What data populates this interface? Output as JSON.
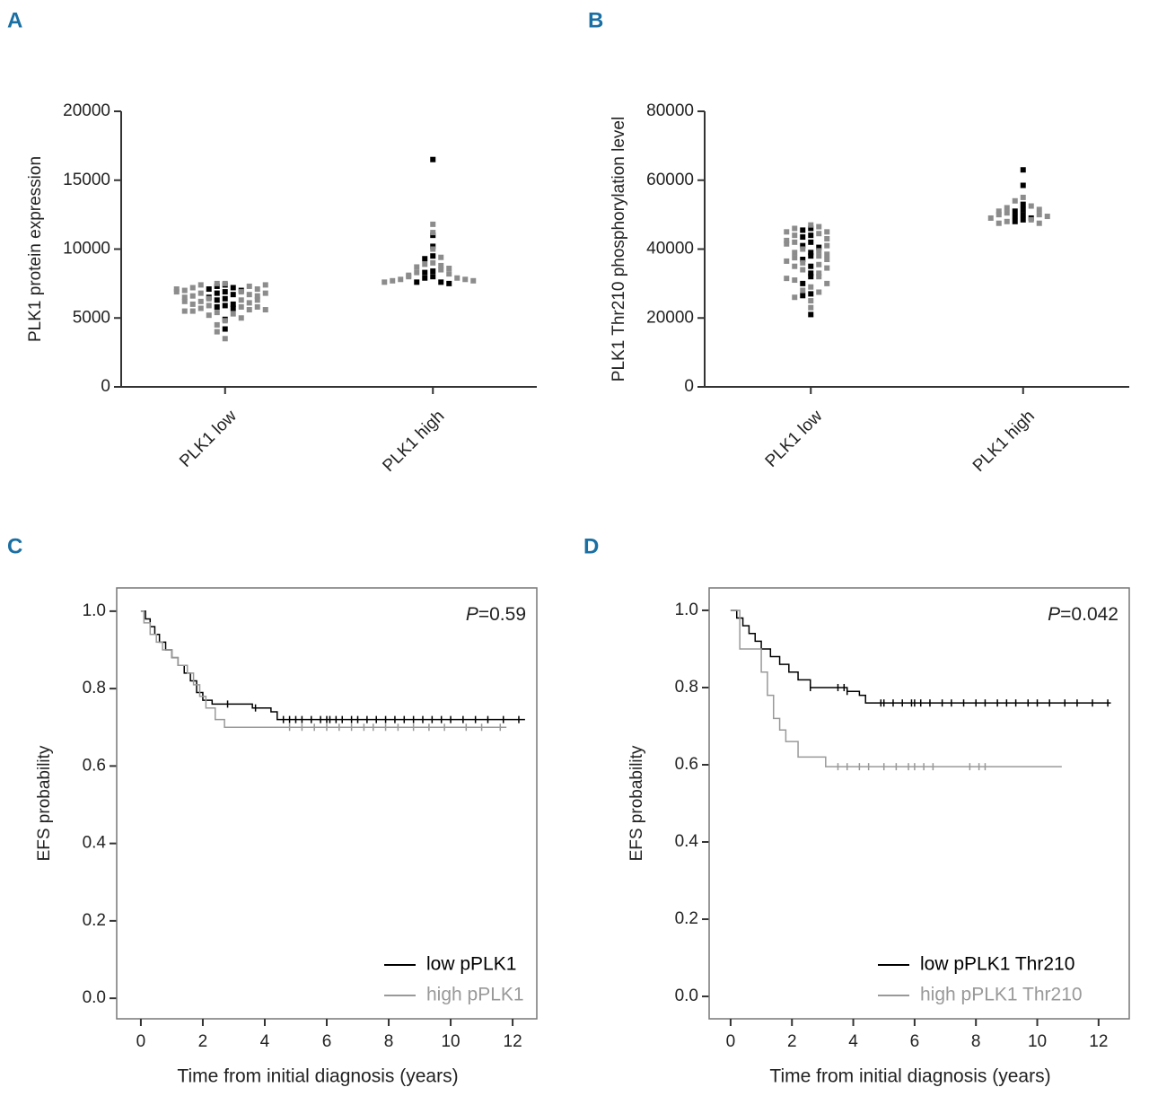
{
  "chart_data": [
    {
      "type": "dot",
      "panel_label": "A",
      "y_label": "PLK1 protein expression",
      "categories": [
        "PLK1 low",
        "PLK1 high"
      ],
      "ylim": [
        0,
        20000
      ],
      "yticks": [
        0,
        5000,
        10000,
        15000,
        20000
      ],
      "groups": [
        {
          "series": [
            {
              "color": "#000000",
              "values": [
                7400,
                7300,
                7200,
                7100,
                7000,
                6900,
                6800,
                6700,
                6500,
                6400,
                6300,
                6000,
                5900,
                5800,
                5700,
                4900,
                4200
              ]
            },
            {
              "color": "#8c8c8c",
              "values": [
                7500,
                7500,
                7400,
                7300,
                7200,
                7100,
                7000,
                6900,
                6800,
                6700,
                6600,
                6600,
                6500,
                6400,
                6300,
                6200,
                6100,
                6000,
                5900,
                5800,
                5700,
                5600,
                5500,
                5400,
                5300,
                5200,
                5000,
                4800,
                4500,
                4000,
                3500,
                7400,
                7100,
                6800,
                6300,
                5800,
                5500,
                6900,
                6200,
                5600
              ]
            }
          ]
        },
        {
          "series": [
            {
              "color": "#000000",
              "values": [
                16500,
                11000,
                10200,
                9500,
                9300,
                8400,
                8300,
                8000,
                7900,
                7600,
                7600,
                7500
              ]
            },
            {
              "color": "#8c8c8c",
              "values": [
                11800,
                11200,
                10000,
                9400,
                9000,
                8900,
                8800,
                8700,
                8600,
                8500,
                8300,
                8200,
                8100,
                8000,
                7900,
                7800,
                7800,
                7700,
                7700,
                7600
              ]
            }
          ]
        }
      ]
    },
    {
      "type": "dot",
      "panel_label": "B",
      "y_label": "PLK1 Thr210 phosphorylation level",
      "categories": [
        "PLK1 low",
        "PLK1 high"
      ],
      "ylim": [
        0,
        80000
      ],
      "yticks": [
        0,
        20000,
        40000,
        60000,
        80000
      ],
      "groups": [
        {
          "series": [
            {
              "color": "#000000",
              "values": [
                46000,
                45500,
                44000,
                43500,
                42000,
                41000,
                40500,
                39000,
                38000,
                37000,
                35000,
                33000,
                32000,
                30000,
                27000,
                26500,
                21000
              ]
            },
            {
              "color": "#8c8c8c",
              "values": [
                47000,
                46500,
                46000,
                45000,
                44500,
                44000,
                43000,
                42500,
                42000,
                41000,
                40000,
                39500,
                39000,
                38000,
                37500,
                37000,
                36000,
                35500,
                35000,
                34000,
                33000,
                32000,
                31000,
                30000,
                29000,
                28000,
                27500,
                26000,
                25000,
                23000,
                45000,
                41500,
                38500,
                36500,
                34500,
                31500
              ]
            }
          ]
        },
        {
          "series": [
            {
              "color": "#000000",
              "values": [
                63000,
                58500,
                53000,
                51500,
                51000,
                50000,
                49500,
                49000,
                48500,
                48000
              ]
            },
            {
              "color": "#8c8c8c",
              "values": [
                55000,
                54000,
                52500,
                52000,
                51500,
                51000,
                50500,
                50000,
                50000,
                49500,
                49000,
                48500,
                48000,
                47500,
                47500
              ]
            }
          ]
        }
      ]
    },
    {
      "type": "km",
      "panel_label": "C",
      "y_label": "EFS probability",
      "x_label": "Time from initial diagnosis (years)",
      "annotation": {
        "italic": "P",
        "text": "=0.59"
      },
      "legend": "lower right",
      "xlim": [
        -0.78,
        12.78
      ],
      "xticks": [
        0,
        2,
        4,
        6,
        8,
        10,
        12
      ],
      "ylim": [
        -0.053,
        1.06
      ],
      "yticks": [
        {
          "value": 0,
          "label": "0.0"
        },
        {
          "value": 0.2,
          "label": "0.2"
        },
        {
          "value": 0.4,
          "label": "0.4"
        },
        {
          "value": 0.6,
          "label": "0.6"
        },
        {
          "value": 0.8,
          "label": "0.8"
        },
        {
          "value": 1,
          "label": "1.0"
        }
      ],
      "series": [
        {
          "name": "low pPLK1",
          "color": "#000000",
          "x": [
            0,
            0.15,
            0.3,
            0.45,
            0.6,
            0.8,
            1.0,
            1.2,
            1.4,
            1.6,
            1.8,
            2.0,
            2.3,
            3.6,
            4.2,
            4.4,
            12.4
          ],
          "values": [
            1,
            0.98,
            0.96,
            0.94,
            0.92,
            0.9,
            0.88,
            0.86,
            0.84,
            0.82,
            0.79,
            0.77,
            0.76,
            0.75,
            0.74,
            0.72,
            0.72
          ],
          "censored": [
            2.8,
            3.7,
            4.6,
            4.8,
            5.0,
            5.2,
            5.5,
            5.8,
            6.0,
            6.1,
            6.3,
            6.5,
            6.8,
            7.0,
            7.3,
            7.6,
            7.9,
            8.2,
            8.5,
            8.8,
            9.1,
            9.4,
            9.7,
            10.0,
            10.4,
            10.8,
            11.2,
            11.7,
            12.2
          ]
        },
        {
          "name": "high pPLK1",
          "color": "#999999",
          "x": [
            0,
            0.1,
            0.3,
            0.5,
            0.7,
            1.0,
            1.2,
            1.5,
            1.7,
            1.9,
            2.1,
            2.4,
            2.7,
            11.8
          ],
          "values": [
            1,
            0.97,
            0.94,
            0.92,
            0.9,
            0.88,
            0.86,
            0.84,
            0.81,
            0.78,
            0.75,
            0.72,
            0.7,
            0.7
          ],
          "censored": [
            4.8,
            5.2,
            5.6,
            6.0,
            6.4,
            6.8,
            7.2,
            7.5,
            7.9,
            8.3,
            8.8,
            9.3,
            9.8,
            10.5,
            11.0,
            11.6
          ]
        }
      ]
    },
    {
      "type": "km",
      "panel_label": "D",
      "y_label": "EFS probability",
      "x_label": "Time from initial diagnosis (years)",
      "annotation": {
        "italic": "P",
        "text": "=0.042"
      },
      "legend": "lower right",
      "xlim": [
        -0.7,
        13.0
      ],
      "xticks": [
        0,
        2,
        4,
        6,
        8,
        10,
        12
      ],
      "ylim": [
        -0.058,
        1.058
      ],
      "yticks": [
        {
          "value": 0,
          "label": "0.0"
        },
        {
          "value": 0.2,
          "label": "0.2"
        },
        {
          "value": 0.4,
          "label": "0.4"
        },
        {
          "value": 0.6,
          "label": "0.6"
        },
        {
          "value": 0.8,
          "label": "0.8"
        },
        {
          "value": 1,
          "label": "1.0"
        }
      ],
      "series": [
        {
          "name": "low pPLK1 Thr210",
          "color": "#000000",
          "x": [
            0,
            0.2,
            0.4,
            0.6,
            0.8,
            1.0,
            1.3,
            1.6,
            1.9,
            2.2,
            2.6,
            3.8,
            4.2,
            4.4,
            12.4
          ],
          "values": [
            1,
            0.98,
            0.96,
            0.94,
            0.92,
            0.9,
            0.88,
            0.86,
            0.84,
            0.82,
            0.8,
            0.79,
            0.78,
            0.76,
            0.76
          ],
          "censored": [
            2.6,
            3.5,
            3.7,
            3.8,
            4.9,
            5.0,
            5.3,
            5.6,
            5.9,
            6.0,
            6.2,
            6.5,
            6.9,
            7.2,
            7.6,
            8.0,
            8.3,
            8.7,
            9.0,
            9.3,
            9.7,
            10.0,
            10.4,
            10.9,
            11.3,
            11.8,
            12.3
          ]
        },
        {
          "name": "high pPLK1 Thr210",
          "color": "#999999",
          "x": [
            0,
            0.3,
            1.0,
            1.2,
            1.4,
            1.6,
            1.8,
            2.2,
            3.1,
            10.8
          ],
          "values": [
            1,
            0.9,
            0.84,
            0.78,
            0.72,
            0.69,
            0.66,
            0.62,
            0.595,
            0.595
          ],
          "censored": [
            3.5,
            3.8,
            4.2,
            4.5,
            5.0,
            5.4,
            5.8,
            6.0,
            6.3,
            6.6,
            7.8,
            8.1,
            8.3
          ]
        }
      ]
    }
  ]
}
